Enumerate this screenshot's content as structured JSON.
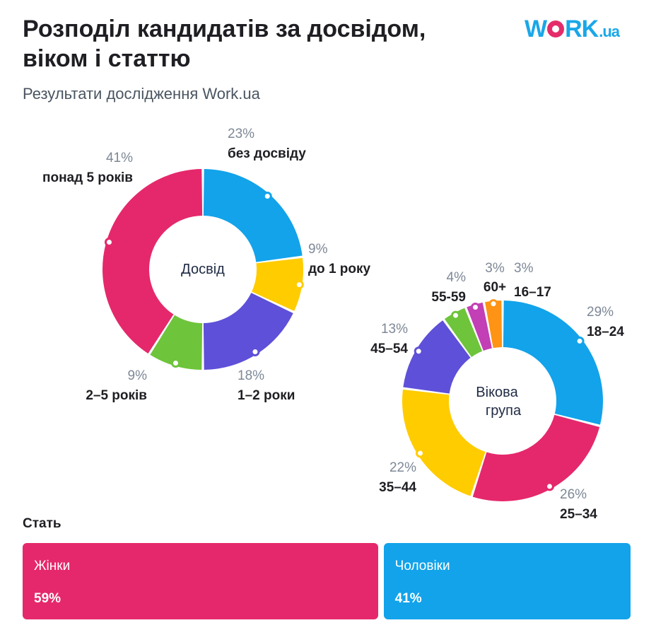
{
  "header": {
    "title": "Розподіл кандидатів за досвідом, віком і статтю",
    "subtitle": "Результати дослідження Work.ua",
    "logo": {
      "main": "WORK",
      "suffix": ".ua",
      "colors": {
        "text": "#1aa7e8",
        "dot": "#e52c6a"
      }
    }
  },
  "chart_data": [
    {
      "type": "pie",
      "title": "Досвід",
      "donut": true,
      "slices": [
        {
          "label": "без досвіду",
          "value": 23,
          "value_label": "23%",
          "color": "#12a3ea"
        },
        {
          "label": "до 1 року",
          "value": 9,
          "value_label": "9%",
          "color": "#ffcc00"
        },
        {
          "label": "1–2 роки",
          "value": 18,
          "value_label": "18%",
          "color": "#5e50d8"
        },
        {
          "label": "2–5 років",
          "value": 9,
          "value_label": "9%",
          "color": "#6ec43b"
        },
        {
          "label": "понад 5 років",
          "value": 41,
          "value_label": "41%",
          "color": "#e5286b"
        }
      ]
    },
    {
      "type": "pie",
      "title": "Вікова група",
      "donut": true,
      "slices": [
        {
          "label": "18–24",
          "value": 29,
          "value_label": "29%",
          "color": "#12a3ea"
        },
        {
          "label": "25–34",
          "value": 26,
          "value_label": "26%",
          "color": "#e5286b"
        },
        {
          "label": "35–44",
          "value": 22,
          "value_label": "22%",
          "color": "#ffcc00"
        },
        {
          "label": "45–54",
          "value": 13,
          "value_label": "13%",
          "color": "#5e50d8"
        },
        {
          "label": "55-59",
          "value": 4,
          "value_label": "4%",
          "color": "#6ec43b"
        },
        {
          "label": "60+",
          "value": 3,
          "value_label": "3%",
          "color": "#c23fb5"
        },
        {
          "label": "16–17",
          "value": 3,
          "value_label": "3%",
          "color": "#ff9315"
        }
      ]
    },
    {
      "type": "bar",
      "title": "Стать",
      "orientation": "horizontal-stacked",
      "categories": [
        "Жінки",
        "Чоловіки"
      ],
      "values": [
        59,
        41
      ],
      "value_labels": [
        "59%",
        "41%"
      ],
      "colors": [
        "#e5286b",
        "#12a3ea"
      ]
    }
  ]
}
